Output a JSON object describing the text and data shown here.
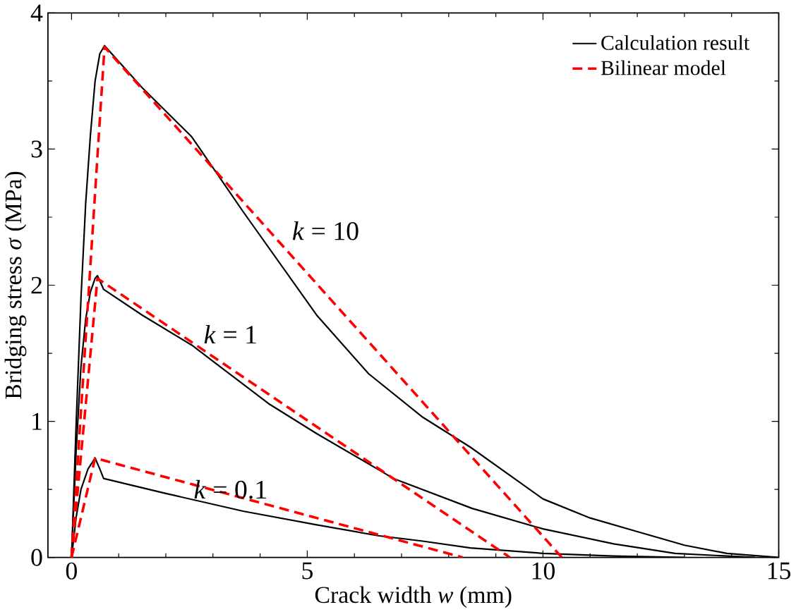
{
  "chart_data": {
    "type": "line",
    "xlabel": "Crack width *w* (mm)",
    "ylabel": "Bridging stress *σ* (MPa)",
    "xlim": [
      -0.5,
      15
    ],
    "ylim": [
      0,
      4
    ],
    "xticks": [
      0,
      5,
      10,
      15
    ],
    "yticks": [
      0,
      1,
      2,
      3,
      4
    ],
    "grid": false,
    "legend": "top right",
    "marker": "none",
    "series": [
      {
        "name": "Calculation result",
        "color": "#000000",
        "line_style": "solid",
        "x": [
          0,
          0.1,
          0.2,
          0.3,
          0.4,
          0.5,
          0.6,
          0.7,
          1.5,
          2.55,
          3.64,
          5.2,
          6.3,
          7.45,
          8.46,
          10,
          11,
          12,
          13,
          13.9,
          15
        ],
        "values": [
          0,
          1.0,
          1.9,
          2.6,
          3.1,
          3.5,
          3.7,
          3.76,
          3.45,
          3.09,
          2.54,
          1.78,
          1.35,
          1.03,
          0.81,
          0.43,
          0.29,
          0.19,
          0.09,
          0.03,
          0
        ]
      },
      {
        "color": "#000000",
        "line_style": "solid",
        "x": [
          0,
          0.1,
          0.2,
          0.3,
          0.4,
          0.5,
          0.55,
          0.68,
          1.5,
          2.55,
          4.18,
          5.2,
          6.83,
          8.5,
          10,
          11.5,
          12.8,
          14.5
        ],
        "values": [
          0,
          0.8,
          1.4,
          1.75,
          1.95,
          2.05,
          2.07,
          1.97,
          1.78,
          1.56,
          1.13,
          0.91,
          0.58,
          0.36,
          0.21,
          0.1,
          0.03,
          0
        ]
      },
      {
        "color": "#000000",
        "line_style": "solid",
        "x": [
          0,
          0.1,
          0.2,
          0.35,
          0.5,
          0.6,
          0.68,
          2,
          3.64,
          5.2,
          6.5,
          7.45,
          8.46,
          10,
          11.5,
          13
        ],
        "values": [
          0,
          0.3,
          0.5,
          0.65,
          0.73,
          0.65,
          0.58,
          0.47,
          0.34,
          0.24,
          0.16,
          0.12,
          0.07,
          0.03,
          0.01,
          0
        ]
      },
      {
        "name": "Bilinear model",
        "color": "#ff0000",
        "line_style": "dashed",
        "x": [
          0,
          0.7,
          10.4
        ],
        "values": [
          0,
          3.75,
          0
        ]
      },
      {
        "color": "#ff0000",
        "line_style": "dashed",
        "x": [
          0,
          0.55,
          9.3
        ],
        "values": [
          0,
          2.05,
          0
        ]
      },
      {
        "color": "#ff0000",
        "line_style": "dashed",
        "x": [
          0,
          0.5,
          8.3
        ],
        "values": [
          0,
          0.73,
          0
        ]
      }
    ],
    "annotations": [
      "*k* = 10",
      "*k* = 1",
      "*k* = 0.1"
    ]
  }
}
